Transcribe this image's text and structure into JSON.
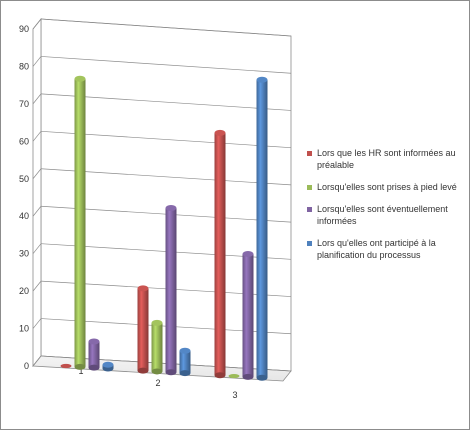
{
  "chart_data": {
    "type": "bar",
    "style": "3d-cylinder",
    "categories": [
      "1",
      "2",
      "3"
    ],
    "series": [
      {
        "name": "Lors que les HR sont informées au préalable",
        "color": "#c0504d",
        "values": [
          0,
          22,
          65
        ]
      },
      {
        "name": "Lorsqu'elles sont prises à pied levé",
        "color": "#9bbb59",
        "values": [
          77,
          13,
          0
        ]
      },
      {
        "name": "Lorsqu'elles sont éventuellement informées",
        "color": "#8064a2",
        "values": [
          7,
          44,
          33
        ]
      },
      {
        "name": "Lors qu'elles ont participé à la planification du processus",
        "color": "#4f81bd",
        "values": [
          1,
          6,
          80
        ]
      }
    ],
    "yticks": [
      0,
      10,
      20,
      30,
      40,
      50,
      60,
      70,
      80,
      90
    ],
    "ylim": [
      0,
      90
    ],
    "grid": true,
    "legend": "right",
    "title": "",
    "xlabel": "",
    "ylabel": ""
  }
}
